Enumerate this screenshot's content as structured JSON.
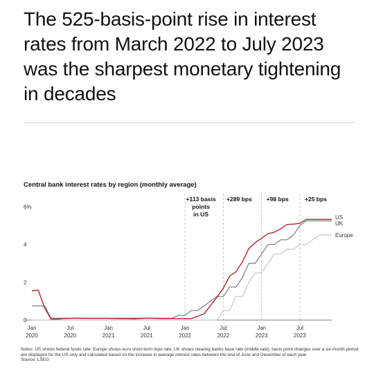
{
  "headline": "The 525-basis-point rise in interest rates from March 2022 to July 2023 was the sharpest monetary tightening in decades",
  "notes": "Notes: US shows federal funds rate; Europe shows euro short-term repo rate; UK shows clearing banks base rate (middle rate); basis point changes over a six-month period are displayed for the US only and calculated based on the increase in average interest rates between the end of June and December of each year",
  "source": "Source: LSEG",
  "colors": {
    "US": "#b0262c",
    "UK": "#7a7a7a",
    "Europe": "#c4c4c4"
  },
  "chart_data": {
    "type": "line",
    "title": "Central bank interest rates by region (monthly average)",
    "y_unit_label": "6%",
    "yticks": [
      0,
      2,
      4,
      6
    ],
    "ylim": [
      -0.6,
      6.2
    ],
    "xlim": [
      0,
      47
    ],
    "xticks": [
      {
        "month": 0,
        "label": "Jan",
        "year": "2020"
      },
      {
        "month": 6,
        "label": "Jul",
        "year": "2020"
      },
      {
        "month": 12,
        "label": "Jan",
        "year": "2021"
      },
      {
        "month": 18,
        "label": "Jul",
        "year": "2021"
      },
      {
        "month": 24,
        "label": "Jan",
        "year": "2022"
      },
      {
        "month": 30,
        "label": "Jul",
        "year": "2022"
      },
      {
        "month": 36,
        "label": "Jan",
        "year": "2023"
      },
      {
        "month": 42,
        "label": "Jul",
        "year": "2023"
      }
    ],
    "annotations": [
      {
        "after_month": 29,
        "lines": [
          "+113 basis",
          "points",
          "in US"
        ]
      },
      {
        "after_month": 35,
        "lines": [
          "+289 bps"
        ]
      },
      {
        "after_month": 41,
        "lines": [
          "+98 bps"
        ]
      },
      {
        "after_month": 47,
        "lines": [
          "+25 bps"
        ]
      }
    ],
    "boundaries": [
      24,
      30,
      36,
      42
    ],
    "series": [
      {
        "name": "US",
        "values": [
          1.55,
          1.58,
          0.65,
          0.05,
          0.05,
          0.08,
          0.09,
          0.1,
          0.09,
          0.09,
          0.09,
          0.09,
          0.09,
          0.08,
          0.07,
          0.07,
          0.06,
          0.08,
          0.1,
          0.09,
          0.08,
          0.08,
          0.08,
          0.08,
          0.08,
          0.08,
          0.2,
          0.33,
          0.77,
          1.21,
          1.68,
          2.33,
          2.56,
          3.08,
          3.78,
          4.1,
          4.33,
          4.57,
          4.65,
          4.83,
          5.06,
          5.08,
          5.12,
          5.33,
          5.33,
          5.33,
          5.33,
          5.33
        ]
      },
      {
        "name": "UK",
        "values": [
          0.75,
          0.75,
          0.75,
          0.1,
          0.1,
          0.1,
          0.1,
          0.1,
          0.1,
          0.1,
          0.1,
          0.1,
          0.1,
          0.1,
          0.1,
          0.1,
          0.1,
          0.1,
          0.1,
          0.1,
          0.1,
          0.1,
          0.1,
          0.25,
          0.25,
          0.5,
          0.5,
          0.75,
          1.0,
          1.25,
          1.25,
          1.75,
          1.75,
          2.25,
          3.0,
          3.0,
          3.5,
          4.0,
          4.0,
          4.25,
          4.25,
          4.5,
          5.0,
          5.25,
          5.25,
          5.25,
          5.25,
          5.25
        ]
      },
      {
        "name": "Europe",
        "values": [
          0,
          0,
          0,
          0,
          0,
          0,
          0,
          0,
          0,
          0,
          0,
          0,
          0,
          0,
          0,
          0,
          0,
          0,
          0,
          0,
          0,
          0,
          0,
          0,
          0,
          0,
          0,
          0,
          0,
          0,
          0.5,
          0.5,
          1.25,
          1.25,
          2.0,
          2.5,
          2.5,
          3.0,
          3.5,
          3.5,
          3.75,
          3.75,
          4.0,
          4.0,
          4.25,
          4.5,
          4.5,
          4.5
        ]
      }
    ],
    "grid": false,
    "legend": "right, at line ends"
  }
}
